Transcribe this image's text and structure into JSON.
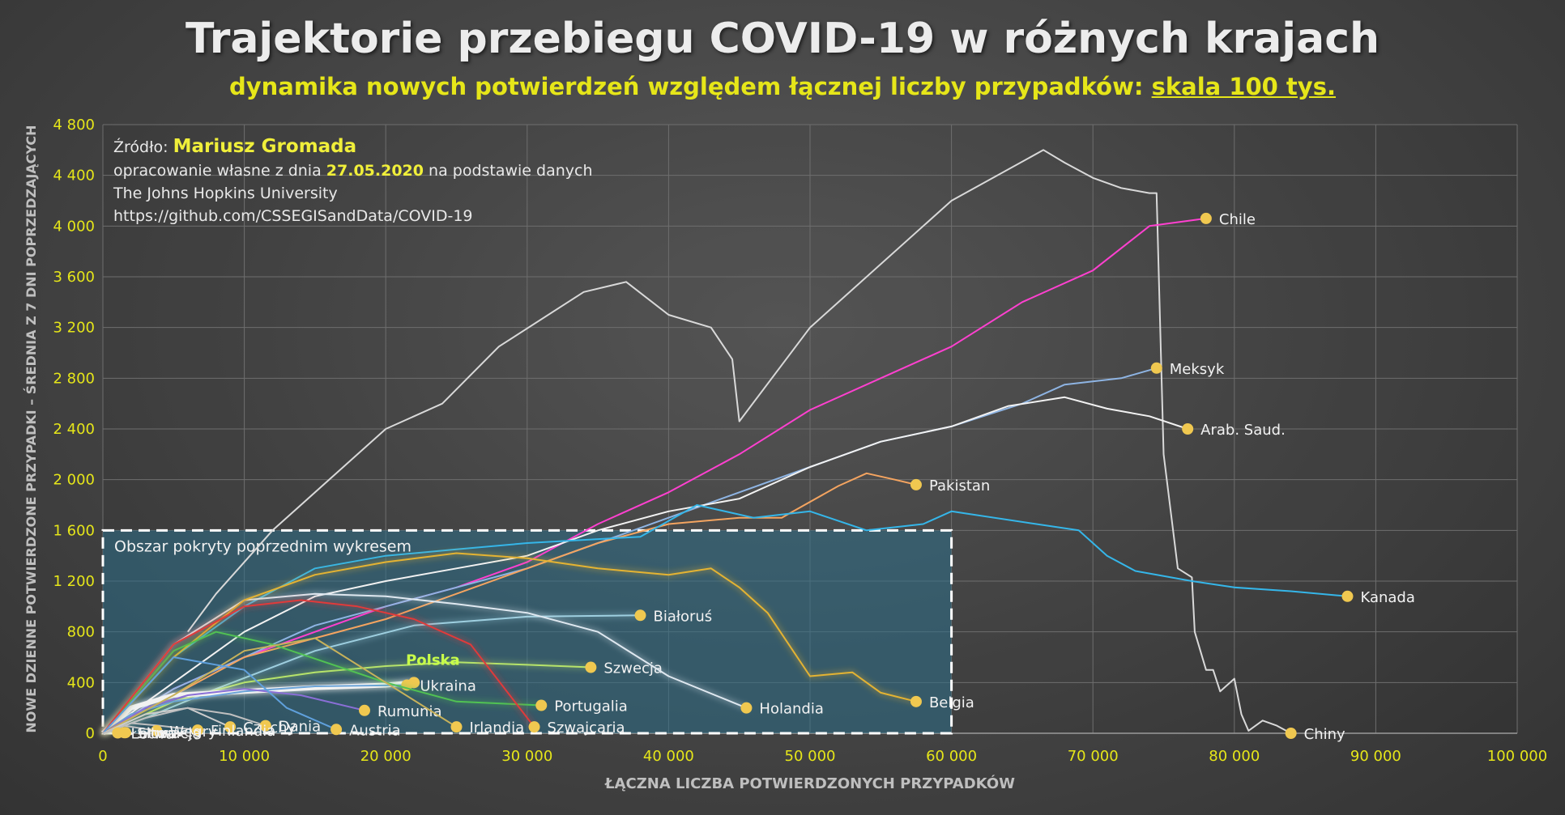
{
  "title": "Trajektorie przebiegu COVID-19 w różnych krajach",
  "subtitle_main": "dynamika nowych potwierdzeń względem łącznej liczby przypadków:",
  "subtitle_highlight": "skala 100 tys.",
  "source": {
    "label": "Źródło:",
    "author": "Mariusz Gromada",
    "line2_prefix": "opracowanie własne z dnia",
    "date": "27.05.2020",
    "line2_suffix": "na podstawie danych",
    "line3": "The Johns Hopkins University",
    "line4": "https://github.com/CSSEGISandData/COVID-19"
  },
  "colors": {
    "axis_tick": "#e6e619",
    "grid": "#6e6e6e",
    "endpoint": "#f0c850",
    "inset_fill": "#2e6f8a"
  },
  "chart_data": {
    "type": "line",
    "xlabel": "ŁĄCZNA LICZBA POTWIERDZONYCH PRZYPADKÓW",
    "ylabel": "NOWE DZIENNE POTWIERDZONE PRZYPADKI – ŚREDNIA Z 7 DNI POPRZEDZAJĄCYCH",
    "xlim": [
      0,
      100000
    ],
    "ylim": [
      0,
      4800
    ],
    "xticks": [
      "0",
      "10 000",
      "20 000",
      "30 000",
      "40 000",
      "50 000",
      "60 000",
      "70 000",
      "80 000",
      "90 000",
      "100 000"
    ],
    "yticks": [
      "0",
      "400",
      "800",
      "1 200",
      "1 600",
      "2 000",
      "2 400",
      "2 800",
      "3 200",
      "3 600",
      "4 000",
      "4 400",
      "4 800"
    ],
    "grid": true,
    "inset": {
      "label": "Obszar pokryty poprzednim wykresem",
      "x_range": [
        0,
        60000
      ],
      "y_range": [
        0,
        1600
      ]
    },
    "series": [
      {
        "name": "Chiny",
        "color": "#d9d9d9",
        "x": [
          6000,
          8000,
          12000,
          17000,
          20000,
          24000,
          28000,
          34000,
          37000,
          40000,
          43000,
          44500,
          45000,
          50000,
          60000,
          66500,
          68000,
          70000,
          72000,
          74000,
          74500,
          75000,
          76000,
          77000,
          77200,
          78000,
          78500,
          79000,
          80000,
          80500,
          81000,
          82000,
          83000,
          84000
        ],
        "y": [
          800,
          1100,
          1600,
          2100,
          2400,
          2600,
          3050,
          3480,
          3560,
          3300,
          3200,
          2950,
          2460,
          3200,
          4200,
          4600,
          4500,
          4380,
          4300,
          4260,
          4260,
          2200,
          1300,
          1230,
          800,
          500,
          500,
          330,
          430,
          150,
          20,
          100,
          60,
          0
        ]
      },
      {
        "name": "Chile",
        "color": "#ff40d0",
        "x": [
          0,
          5000,
          10000,
          15000,
          20000,
          25000,
          30000,
          35000,
          40000,
          45000,
          50000,
          55000,
          60000,
          65000,
          70000,
          74000,
          78000
        ],
        "y": [
          0,
          350,
          600,
          800,
          1000,
          1150,
          1350,
          1650,
          1900,
          2200,
          2550,
          2800,
          3050,
          3400,
          3650,
          4000,
          4060
        ]
      },
      {
        "name": "Meksyk",
        "color": "#8eb4e3",
        "x": [
          0,
          5000,
          10000,
          15000,
          20000,
          25000,
          30000,
          35000,
          40000,
          45000,
          50000,
          55000,
          60000,
          65000,
          68000,
          72000,
          74500
        ],
        "y": [
          0,
          350,
          600,
          850,
          1000,
          1150,
          1300,
          1500,
          1700,
          1900,
          2100,
          2300,
          2420,
          2600,
          2750,
          2800,
          2880
        ]
      },
      {
        "name": "Arab. Saud.",
        "color": "#f2f2f2",
        "x": [
          0,
          5000,
          10000,
          15000,
          20000,
          25000,
          30000,
          35000,
          40000,
          45000,
          50000,
          55000,
          60000,
          64000,
          68000,
          71000,
          74000,
          76700
        ],
        "y": [
          0,
          400,
          800,
          1080,
          1200,
          1300,
          1400,
          1600,
          1750,
          1850,
          2100,
          2300,
          2420,
          2580,
          2650,
          2560,
          2500,
          2400
        ]
      },
      {
        "name": "Pakistan",
        "color": "#f4a460",
        "x": [
          0,
          5000,
          10000,
          15000,
          20000,
          25000,
          30000,
          35000,
          40000,
          45000,
          48000,
          52000,
          54000,
          56000,
          57500
        ],
        "y": [
          0,
          300,
          600,
          750,
          900,
          1100,
          1300,
          1500,
          1650,
          1700,
          1700,
          1950,
          2050,
          2000,
          1960
        ]
      },
      {
        "name": "Kanada",
        "color": "#35b6e9",
        "x": [
          0,
          5000,
          10000,
          15000,
          20000,
          25000,
          30000,
          38000,
          42000,
          46000,
          50000,
          54000,
          58000,
          60000,
          66000,
          69000,
          71000,
          73000,
          77000,
          80000,
          84000,
          88000
        ],
        "y": [
          0,
          600,
          1000,
          1300,
          1400,
          1450,
          1500,
          1550,
          1800,
          1700,
          1750,
          1600,
          1650,
          1750,
          1650,
          1600,
          1400,
          1280,
          1200,
          1150,
          1120,
          1080
        ]
      },
      {
        "name": "Białoruś",
        "color": "#9ecfe0",
        "x": [
          0,
          3000,
          8000,
          15000,
          22000,
          30000,
          38000
        ],
        "y": [
          0,
          120,
          350,
          650,
          850,
          920,
          930
        ]
      },
      {
        "name": "Szwecja",
        "color": "#b6e36a",
        "x": [
          0,
          5000,
          10000,
          15000,
          20000,
          25000,
          30000,
          34500
        ],
        "y": [
          0,
          250,
          400,
          480,
          530,
          560,
          540,
          520
        ]
      },
      {
        "name": "Holandia",
        "color": "#dfe8f0",
        "x": [
          0,
          5000,
          10000,
          15000,
          20000,
          25000,
          30000,
          35000,
          40000,
          45500
        ],
        "y": [
          0,
          700,
          1050,
          1100,
          1080,
          1020,
          950,
          800,
          450,
          200
        ]
      },
      {
        "name": "Belgia",
        "color": "#e4b333",
        "x": [
          0,
          5000,
          10000,
          15000,
          20000,
          25000,
          30000,
          35000,
          40000,
          43000,
          45000,
          47000,
          50000,
          53000,
          55000,
          57500
        ],
        "y": [
          0,
          600,
          1050,
          1250,
          1350,
          1420,
          1380,
          1300,
          1250,
          1300,
          1150,
          950,
          450,
          480,
          320,
          250
        ]
      },
      {
        "name": "Polska",
        "color": "#f2f2f2",
        "x": [
          0,
          2000,
          5000,
          10000,
          15000,
          20000,
          22000
        ],
        "y": [
          0,
          200,
          300,
          330,
          360,
          380,
          400
        ]
      },
      {
        "name": "Ukraina",
        "color": "#6aa3d8",
        "x": [
          0,
          2000,
          5000,
          10000,
          15000,
          21500
        ],
        "y": [
          0,
          150,
          250,
          330,
          370,
          380
        ]
      },
      {
        "name": "Portugalia",
        "color": "#51c252",
        "x": [
          0,
          5000,
          8000,
          12000,
          16000,
          20000,
          25000,
          31000
        ],
        "y": [
          0,
          650,
          800,
          700,
          550,
          400,
          250,
          220
        ]
      },
      {
        "name": "Rumunia",
        "color": "#8a6fd6",
        "x": [
          0,
          3000,
          6000,
          10000,
          14000,
          18500
        ],
        "y": [
          0,
          200,
          300,
          350,
          300,
          180
        ]
      },
      {
        "name": "Irlandia",
        "color": "#c8b25a",
        "x": [
          0,
          5000,
          10000,
          15000,
          20000,
          25000
        ],
        "y": [
          0,
          300,
          650,
          750,
          400,
          50
        ]
      },
      {
        "name": "Szwajcaria",
        "color": "#e03a3a",
        "x": [
          0,
          5000,
          10000,
          14000,
          18000,
          22000,
          26000,
          30500
        ],
        "y": [
          0,
          700,
          1000,
          1050,
          1000,
          900,
          700,
          50
        ]
      },
      {
        "name": "Czechy",
        "color": "#cccccc",
        "x": [
          0,
          3000,
          6000,
          9000
        ],
        "y": [
          0,
          150,
          200,
          50
        ]
      },
      {
        "name": "Austria",
        "color": "#5fa0dc",
        "x": [
          0,
          5000,
          10000,
          13000,
          16500
        ],
        "y": [
          0,
          600,
          500,
          200,
          30
        ]
      },
      {
        "name": "Dania",
        "color": "#c0c0c0",
        "x": [
          0,
          3000,
          6000,
          9000,
          11500
        ],
        "y": [
          0,
          120,
          200,
          150,
          60
        ]
      },
      {
        "name": "Finlandia",
        "color": "#c0c0c0",
        "x": [
          0,
          2000,
          4000,
          6700
        ],
        "y": [
          0,
          80,
          60,
          25
        ]
      },
      {
        "name": "Węgry",
        "color": "#c0c0c0",
        "x": [
          0,
          1500,
          3800
        ],
        "y": [
          0,
          60,
          20
        ]
      },
      {
        "name": "Słowacja",
        "color": "#c0c0c0",
        "x": [
          0,
          800,
          1500
        ],
        "y": [
          0,
          30,
          5
        ]
      },
      {
        "name": "Litwa",
        "color": "#c0c0c0",
        "x": [
          0,
          800,
          1600
        ],
        "y": [
          0,
          25,
          5
        ]
      },
      {
        "name": "Łotwa",
        "color": "#c0c0c0",
        "x": [
          0,
          600,
          1050
        ],
        "y": [
          0,
          20,
          3
        ]
      }
    ]
  }
}
